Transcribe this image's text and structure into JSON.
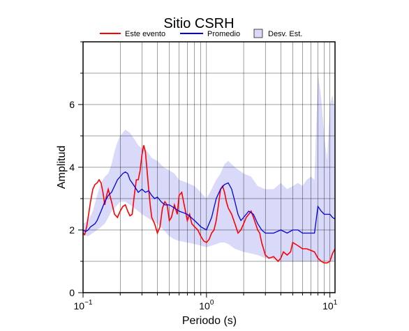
{
  "chart_data": {
    "type": "line",
    "title": "Sitio CSRH",
    "xlabel": "Periodo (s)",
    "ylabel": "Amplitud",
    "xscale": "log",
    "xlim": [
      0.1,
      11
    ],
    "ylim": [
      0,
      8
    ],
    "grid": true,
    "legend_position": "top",
    "x_tick_labels": [
      {
        "value": 0.1,
        "base": "10",
        "exp": "−1"
      },
      {
        "value": 1,
        "base": "10",
        "exp": "0"
      },
      {
        "value": 10,
        "base": "10",
        "exp": "1"
      }
    ],
    "y_ticks": [
      0,
      2,
      4,
      6
    ],
    "series": [
      {
        "name": "Este evento",
        "color": "#ff0000",
        "x": [
          0.1,
          0.103,
          0.107,
          0.11,
          0.115,
          0.12,
          0.125,
          0.13,
          0.135,
          0.14,
          0.145,
          0.15,
          0.155,
          0.16,
          0.17,
          0.18,
          0.19,
          0.2,
          0.21,
          0.22,
          0.23,
          0.24,
          0.25,
          0.26,
          0.27,
          0.28,
          0.29,
          0.3,
          0.31,
          0.32,
          0.33,
          0.34,
          0.35,
          0.36,
          0.38,
          0.4,
          0.42,
          0.44,
          0.46,
          0.48,
          0.5,
          0.52,
          0.55,
          0.58,
          0.6,
          0.63,
          0.66,
          0.7,
          0.73,
          0.76,
          0.8,
          0.85,
          0.9,
          0.95,
          1.0,
          1.05,
          1.1,
          1.15,
          1.2,
          1.25,
          1.3,
          1.35,
          1.4,
          1.45,
          1.5,
          1.6,
          1.7,
          1.8,
          1.9,
          2.0,
          2.1,
          2.2,
          2.3,
          2.4,
          2.5,
          2.6,
          2.7,
          2.8,
          3.0,
          3.2,
          3.5,
          3.8,
          4.0,
          4.2,
          4.5,
          4.8,
          5.0,
          5.5,
          6.0,
          6.5,
          7.0,
          7.5,
          8.0,
          8.5,
          9.0,
          9.5,
          10.0,
          10.5,
          11.0
        ],
        "y": [
          1.9,
          1.85,
          2.1,
          2.4,
          2.9,
          3.3,
          3.45,
          3.5,
          3.6,
          3.5,
          3.2,
          2.8,
          3.1,
          3.3,
          2.9,
          2.5,
          2.4,
          2.6,
          2.75,
          2.8,
          2.6,
          2.45,
          2.5,
          3.1,
          3.6,
          3.6,
          3.9,
          4.4,
          4.7,
          4.5,
          3.9,
          3.3,
          2.8,
          2.4,
          2.2,
          1.9,
          2.1,
          2.7,
          2.9,
          2.8,
          2.3,
          2.4,
          2.8,
          2.5,
          3.1,
          3.2,
          2.8,
          2.3,
          2.5,
          2.2,
          2.1,
          2.0,
          1.8,
          1.65,
          1.6,
          1.7,
          1.9,
          2.0,
          2.3,
          2.8,
          3.3,
          3.4,
          3.2,
          2.9,
          2.7,
          2.5,
          2.2,
          1.9,
          2.0,
          2.2,
          2.4,
          2.5,
          2.6,
          2.4,
          2.2,
          2.0,
          1.9,
          1.6,
          1.2,
          1.1,
          1.15,
          1.0,
          1.1,
          1.3,
          1.2,
          1.3,
          1.6,
          1.5,
          1.4,
          1.4,
          1.35,
          1.3,
          1.1,
          1.0,
          0.95,
          0.95,
          1.0,
          1.25,
          1.4
        ]
      },
      {
        "name": "Promedio",
        "color": "#0000e6",
        "x": [
          0.1,
          0.105,
          0.11,
          0.115,
          0.12,
          0.125,
          0.13,
          0.14,
          0.15,
          0.16,
          0.17,
          0.18,
          0.19,
          0.2,
          0.21,
          0.22,
          0.23,
          0.24,
          0.25,
          0.26,
          0.27,
          0.28,
          0.3,
          0.32,
          0.34,
          0.36,
          0.38,
          0.4,
          0.43,
          0.46,
          0.5,
          0.55,
          0.6,
          0.65,
          0.7,
          0.75,
          0.8,
          0.85,
          0.9,
          0.95,
          1.0,
          1.1,
          1.2,
          1.3,
          1.4,
          1.5,
          1.6,
          1.7,
          1.8,
          1.9,
          2.0,
          2.2,
          2.4,
          2.6,
          2.8,
          3.0,
          3.5,
          4.0,
          4.5,
          5.0,
          5.5,
          6.0,
          6.5,
          7.0,
          7.5,
          8.0,
          8.5,
          9.0,
          9.5,
          10.0,
          10.5,
          11.0
        ],
        "y": [
          2.0,
          1.95,
          2.0,
          2.1,
          2.15,
          2.2,
          2.3,
          2.6,
          2.9,
          3.1,
          3.2,
          3.4,
          3.6,
          3.7,
          3.8,
          3.85,
          3.8,
          3.6,
          3.5,
          3.4,
          3.3,
          3.2,
          3.3,
          3.2,
          3.25,
          3.1,
          3.0,
          3.05,
          2.9,
          2.8,
          2.8,
          2.7,
          2.6,
          2.55,
          2.5,
          2.4,
          2.3,
          2.2,
          2.1,
          2.05,
          2.0,
          2.4,
          3.0,
          3.3,
          3.45,
          3.5,
          3.3,
          2.9,
          2.5,
          2.3,
          2.4,
          2.6,
          2.5,
          2.2,
          2.0,
          1.9,
          1.9,
          2.0,
          1.9,
          2.0,
          2.0,
          1.9,
          1.9,
          1.9,
          1.9,
          2.75,
          2.6,
          2.5,
          2.5,
          2.5,
          2.4,
          2.35
        ]
      }
    ],
    "band": {
      "name": "Desv. Est.",
      "color": "#d9d9f9",
      "x": [
        0.1,
        0.11,
        0.12,
        0.13,
        0.14,
        0.15,
        0.16,
        0.17,
        0.18,
        0.19,
        0.2,
        0.22,
        0.24,
        0.26,
        0.28,
        0.3,
        0.33,
        0.36,
        0.4,
        0.45,
        0.5,
        0.55,
        0.6,
        0.7,
        0.8,
        0.9,
        1.0,
        1.1,
        1.2,
        1.3,
        1.4,
        1.5,
        1.7,
        2.0,
        2.3,
        2.6,
        3.0,
        3.5,
        4.0,
        4.5,
        5.0,
        5.5,
        6.0,
        6.5,
        7.0,
        7.5,
        8.0,
        8.5,
        9.0,
        9.5,
        10.0,
        10.5,
        11.0
      ],
      "upper": [
        2.2,
        2.3,
        2.6,
        3.1,
        3.5,
        3.7,
        3.8,
        4.1,
        4.5,
        4.8,
        5.0,
        5.2,
        5.1,
        4.9,
        4.7,
        4.6,
        4.5,
        4.3,
        4.2,
        4.0,
        3.9,
        3.8,
        3.6,
        3.5,
        3.4,
        3.2,
        3.0,
        3.3,
        3.6,
        3.8,
        4.1,
        4.2,
        4.0,
        3.8,
        3.7,
        3.4,
        3.3,
        3.3,
        3.5,
        3.3,
        3.4,
        3.5,
        3.4,
        3.6,
        3.7,
        3.6,
        7.0,
        6.2,
        5.0,
        4.2,
        6.0,
        6.3,
        5.8
      ],
      "lower": [
        1.85,
        1.8,
        1.9,
        2.0,
        2.1,
        2.2,
        2.4,
        2.6,
        2.7,
        2.8,
        2.9,
        2.9,
        2.8,
        2.7,
        2.6,
        2.5,
        2.4,
        2.3,
        2.2,
        2.0,
        1.8,
        1.7,
        1.65,
        1.6,
        1.55,
        1.5,
        1.45,
        1.5,
        1.55,
        1.6,
        1.6,
        1.55,
        1.4,
        1.3,
        1.25,
        1.2,
        1.1,
        1.05,
        1.0,
        1.0,
        1.0,
        1.0,
        1.0,
        1.0,
        1.0,
        1.0,
        1.0,
        1.0,
        1.0,
        1.0,
        1.0,
        1.0,
        1.05
      ]
    }
  }
}
